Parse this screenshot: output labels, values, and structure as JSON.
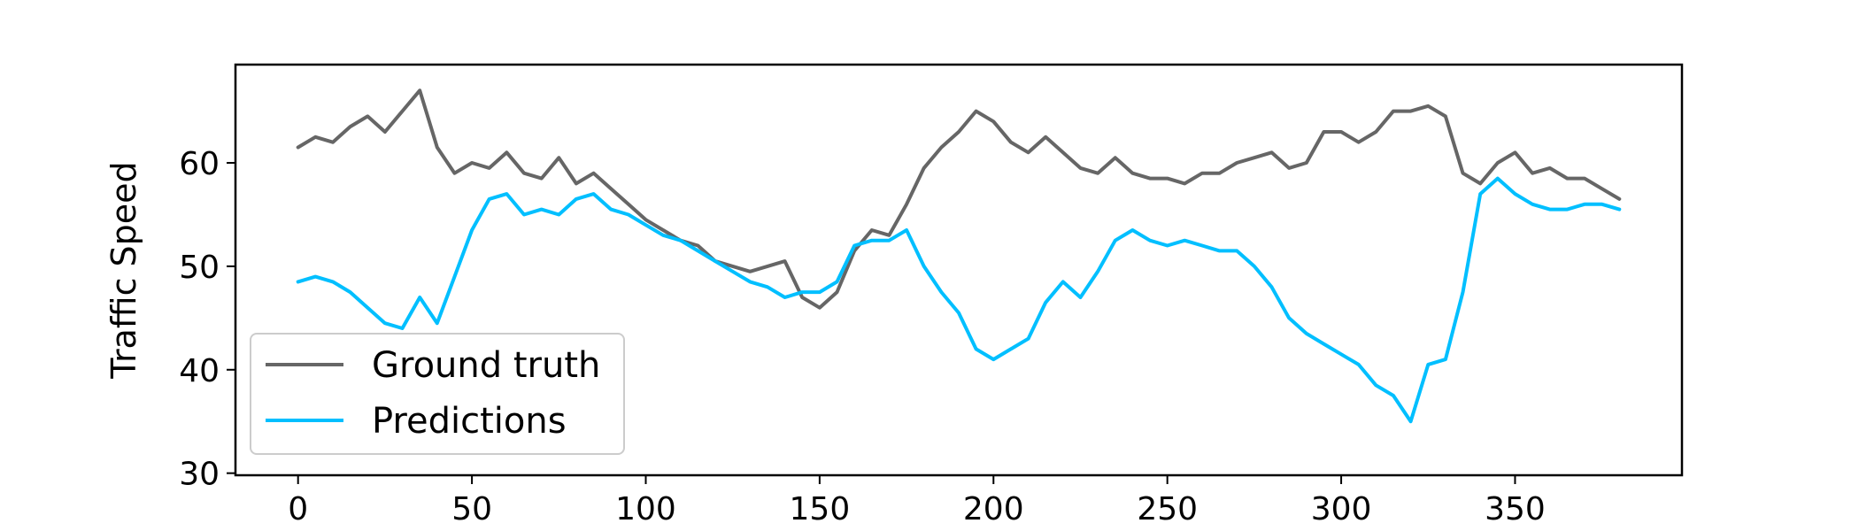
{
  "chart_data": {
    "type": "line",
    "title": "",
    "xlabel": "",
    "ylabel": "Traffic Speed",
    "xlim": [
      -18,
      398
    ],
    "ylim": [
      29.8,
      69.5
    ],
    "xticks": [
      0,
      50,
      100,
      150,
      200,
      250,
      300,
      350
    ],
    "yticks": [
      30,
      40,
      50,
      60
    ],
    "grid": false,
    "legend_position": "lower-left",
    "series": [
      {
        "name": "Ground truth",
        "color": "#666666",
        "x": [
          0,
          5,
          10,
          15,
          20,
          25,
          30,
          35,
          40,
          45,
          50,
          55,
          60,
          65,
          70,
          75,
          80,
          85,
          90,
          95,
          100,
          105,
          110,
          115,
          120,
          125,
          130,
          135,
          140,
          145,
          150,
          155,
          160,
          165,
          170,
          175,
          180,
          185,
          190,
          195,
          200,
          205,
          210,
          215,
          220,
          225,
          230,
          235,
          240,
          245,
          250,
          255,
          260,
          265,
          270,
          275,
          280,
          285,
          290,
          295,
          300,
          305,
          310,
          315,
          320,
          325,
          330,
          335,
          340,
          345,
          350,
          355,
          360,
          365,
          370,
          375,
          380
        ],
        "values": [
          61.5,
          62.5,
          62.0,
          63.5,
          64.5,
          63.0,
          65.0,
          67.0,
          61.5,
          59.0,
          60.0,
          59.5,
          61.0,
          59.0,
          58.5,
          60.5,
          58.0,
          59.0,
          57.5,
          56.0,
          54.5,
          53.5,
          52.5,
          52.0,
          50.5,
          50.0,
          49.5,
          50.0,
          50.5,
          47.0,
          46.0,
          47.5,
          51.5,
          53.5,
          53.0,
          56.0,
          59.5,
          61.5,
          63.0,
          65.0,
          64.0,
          62.0,
          61.0,
          62.5,
          61.0,
          59.5,
          59.0,
          60.5,
          59.0,
          58.5,
          58.5,
          58.0,
          59.0,
          59.0,
          60.0,
          60.5,
          61.0,
          59.5,
          60.0,
          63.0,
          63.0,
          62.0,
          63.0,
          65.0,
          65.0,
          65.5,
          64.5,
          59.0,
          58.0,
          60.0,
          61.0,
          59.0,
          59.5,
          58.5,
          58.5,
          57.5,
          56.5
        ]
      },
      {
        "name": "Predictions",
        "color": "#00bfff",
        "x": [
          0,
          5,
          10,
          15,
          20,
          25,
          30,
          35,
          40,
          45,
          50,
          55,
          60,
          65,
          70,
          75,
          80,
          85,
          90,
          95,
          100,
          105,
          110,
          115,
          120,
          125,
          130,
          135,
          140,
          145,
          150,
          155,
          160,
          165,
          170,
          175,
          180,
          185,
          190,
          195,
          200,
          205,
          210,
          215,
          220,
          225,
          230,
          235,
          240,
          245,
          250,
          255,
          260,
          265,
          270,
          275,
          280,
          285,
          290,
          295,
          300,
          305,
          310,
          315,
          320,
          325,
          330,
          335,
          340,
          345,
          350,
          355,
          360,
          365,
          370,
          375,
          380
        ],
        "values": [
          48.5,
          49.0,
          48.5,
          47.5,
          46.0,
          44.5,
          44.0,
          47.0,
          44.5,
          49.0,
          53.5,
          56.5,
          57.0,
          55.0,
          55.5,
          55.0,
          56.5,
          57.0,
          55.5,
          55.0,
          54.0,
          53.0,
          52.5,
          51.5,
          50.5,
          49.5,
          48.5,
          48.0,
          47.0,
          47.5,
          47.5,
          48.5,
          52.0,
          52.5,
          52.5,
          53.5,
          50.0,
          47.5,
          45.5,
          42.0,
          41.0,
          42.0,
          43.0,
          46.5,
          48.5,
          47.0,
          49.5,
          52.5,
          53.5,
          52.5,
          52.0,
          52.5,
          52.0,
          51.5,
          51.5,
          50.0,
          48.0,
          45.0,
          43.5,
          42.5,
          41.5,
          40.5,
          38.5,
          37.5,
          35.0,
          40.5,
          41.0,
          47.5,
          57.0,
          58.5,
          57.0,
          56.0,
          55.5,
          55.5,
          56.0,
          56.0,
          55.5
        ]
      }
    ]
  }
}
